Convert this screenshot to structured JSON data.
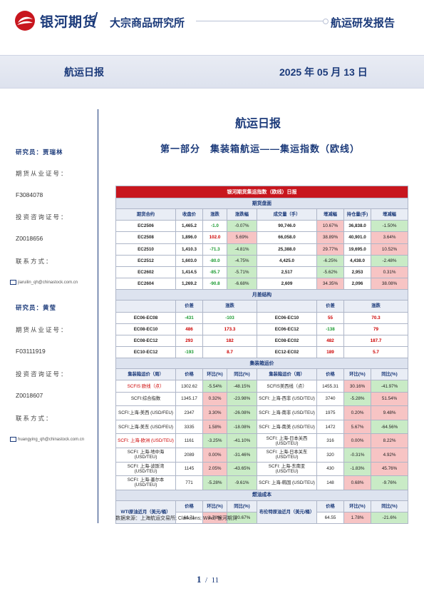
{
  "header": {
    "company": "银河期货",
    "institute": "大宗商品研究所",
    "report_type": "航运研发报告",
    "band_title": "航运日报",
    "date": "2025 年 05 月 13 日"
  },
  "sidebar": {
    "analyst1": {
      "label": "研究员：贾瑞林",
      "license_label": "期货从业证号：",
      "license": "F3084078",
      "invest_label": "投资咨询证号：",
      "invest": "Z0018656",
      "contact_label": "联系方式：",
      "email": "jiaruilin_qh@chinastock.com.cn"
    },
    "analyst2": {
      "label": "研究员：黄莹",
      "license_label": "期货从业证号：",
      "license": "F03111919",
      "invest_label": "投资咨询证号：",
      "invest": "Z0018607",
      "contact_label": "联系方式：",
      "email": "huangying_qh@chinastock.com.cn"
    }
  },
  "main": {
    "title": "航运日报",
    "section": "第一部分　集装箱航运——集运指数（欧线）",
    "table_title": "银河期货集运指数（欧线）日报",
    "futures": {
      "section_label": "期货盘面",
      "headers": [
        "期货合约",
        "收盘价",
        "涨跌",
        "涨跌幅",
        "成交量（手）",
        "增减幅",
        "持仓量(手)",
        "增减幅"
      ],
      "rows": [
        [
          "EC2506",
          "1,465.2",
          "-1.0",
          "-0.07%",
          "90,746.0",
          "10.67%",
          "36,838.0",
          "-1.50%"
        ],
        [
          "EC2508",
          "1,896.0",
          "102.0",
          "5.69%",
          "66,058.0",
          "38.89%",
          "40,901.0",
          "3.64%"
        ],
        [
          "EC2510",
          "1,410.3",
          "-71.3",
          "-4.81%",
          "25,388.0",
          "29.77%",
          "19,695.0",
          "10.52%"
        ],
        [
          "EC2512",
          "1,603.0",
          "-80.0",
          "-4.75%",
          "4,425.0",
          "-6.25%",
          "4,438.0",
          "-2.48%"
        ],
        [
          "EC2602",
          "1,414.5",
          "-85.7",
          "-5.71%",
          "2,517",
          "-5.62%",
          "2,953",
          "0.31%"
        ],
        [
          "EC2604",
          "1,269.2",
          "-90.8",
          "-6.68%",
          "2,609",
          "34.35%",
          "2,096",
          "38.08%"
        ]
      ]
    },
    "spread": {
      "section_label": "月差结构",
      "headers": [
        "价差",
        "涨跌",
        "价差",
        "涨跌"
      ],
      "rows": [
        [
          "EC06-EC08",
          "-431",
          "-103",
          "EC06-EC10",
          "55",
          "70.3"
        ],
        [
          "EC08-EC10",
          "486",
          "173.3",
          "EC06-EC12",
          "-138",
          "79"
        ],
        [
          "EC08-EC12",
          "293",
          "182",
          "EC08-EC02",
          "482",
          "187.7"
        ],
        [
          "EC10-EC12",
          "-193",
          "8.7",
          "EC12-EC02",
          "189",
          "5.7"
        ]
      ]
    },
    "freight": {
      "section_label": "集装箱运价",
      "headers": [
        "集装箱运价（周）",
        "价格",
        "环比(%)",
        "同比(%)",
        "集装箱运价（周）",
        "价格",
        "环比(%)",
        "同比(%)"
      ],
      "rows": [
        [
          "SCFIS 欧线（点）",
          "1302.62",
          "-5.54%",
          "-48.15%",
          "SCFIS美西线（点）",
          "1455.31",
          "30.16%",
          "-41.97%"
        ],
        [
          "SCFI:综合指数",
          "1345.17",
          "0.32%",
          "-23.98%",
          "SCFI: 上海-西非 (USD/TEU)",
          "3740",
          "-5.28%",
          "51.54%"
        ],
        [
          "SCFI:上海-美西 (USD/FEU)",
          "2347",
          "3.30%",
          "-26.08%",
          "SCFI: 上海-南非 (USD/TEU)",
          "1975",
          "0.20%",
          "9.48%"
        ],
        [
          "SCFI:上海-美东 (USD/FEU)",
          "3335",
          "1.58%",
          "-18.08%",
          "SCFI: 上海-南美 (USD/TEU)",
          "1472",
          "5.67%",
          "-64.56%"
        ],
        [
          "SCFI: 上海-欧洲 (USD/TEU)",
          "1161",
          "-3.25%",
          "-41.10%",
          "SCFI: 上海-日本关西 (USD/TEU)",
          "316",
          "0.00%",
          "8.22%"
        ],
        [
          "SCFI: 上海-地中海 (USD/TEU)",
          "2089",
          "0.00%",
          "-31.46%",
          "SCFI: 上海-日本关东 (USD/TEU)",
          "320",
          "-0.31%",
          "4.92%"
        ],
        [
          "SCFI: 上海-波斯湾 (USD/TEU)",
          "1145",
          "2.05%",
          "-43.65%",
          "SCFI: 上海-东南亚 (USD/TEU)",
          "430",
          "-1.83%",
          "45.76%"
        ],
        [
          "SCFI: 上海-墨尔本 (USD/TEU)",
          "771",
          "-5.28%",
          "-9.61%",
          "SCFI: 上海-韩国 (USD/TEU)",
          "148",
          "0.68%",
          "-9.76%"
        ]
      ]
    },
    "fuel": {
      "section_label": "燃油成本",
      "wti_label": "WTI原油近月（美元/桶）",
      "brent_label": "布伦特原油近月（美元/桶）",
      "headers": [
        "价格",
        "环比(%)",
        "同比(%)"
      ],
      "wti": [
        "61.71",
        "1.78%",
        "-20.67%"
      ],
      "brent": [
        "64.55",
        "1.78%",
        "-21.6%"
      ]
    },
    "source": "数据来源：上海航运交易所; Clarksons; Wind; 银河期货"
  },
  "footer": {
    "page": "1",
    "total": "11"
  },
  "colors": {
    "brand": "#1b3a7a",
    "accent": "#c8161e",
    "up_bg": "#f7c4c4",
    "down_bg": "#c9ebc6"
  }
}
